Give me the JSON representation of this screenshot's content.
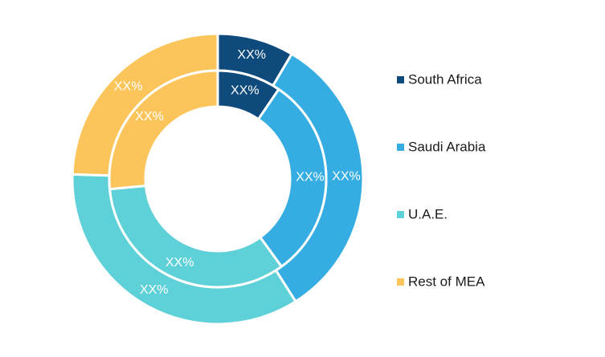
{
  "chart_data": {
    "type": "pie",
    "variant": "double-donut",
    "categories": [
      "South Africa",
      "Saudi Arabia",
      "U.A.E.",
      "Rest of MEA"
    ],
    "colors": [
      "#0e4a7b",
      "#35ade2",
      "#5ed0d8",
      "#fbc55b"
    ],
    "series": [
      {
        "ring": "outer",
        "values": [
          8.5,
          32.5,
          34.5,
          24.5
        ],
        "labels": [
          "XX%",
          "XX%",
          "XX%",
          "XX%"
        ]
      },
      {
        "ring": "inner",
        "values": [
          9.5,
          30.5,
          33.5,
          26.5
        ],
        "labels": [
          "XX%",
          "XX%",
          "XX%",
          "XX%"
        ]
      }
    ],
    "legend_position": "right"
  }
}
